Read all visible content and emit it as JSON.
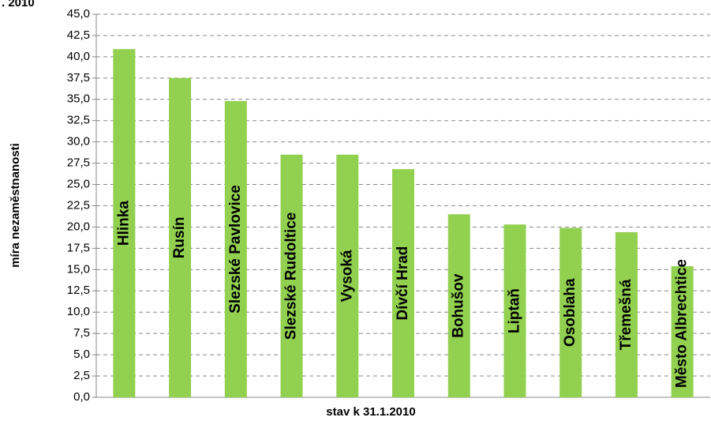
{
  "chart_data": {
    "type": "bar",
    "title": ". 2010",
    "x_label": "stav k 31.1.2010",
    "y_label": "míra nezaměstnanosti",
    "categories": [
      "Hlinka",
      "Rusín",
      "Slezské Pavlovice",
      "Slezské Rudoltice",
      "Vysoká",
      "Dívčí Hrad",
      "Bohušov",
      "Liptaň",
      "Osoblaha",
      "Třemešná",
      "Město Albrechtice"
    ],
    "values": [
      40.9,
      37.5,
      34.8,
      28.5,
      28.5,
      26.8,
      21.5,
      20.3,
      19.9,
      19.4,
      15.4
    ],
    "color": "#92d050",
    "ylim": [
      0,
      45
    ],
    "yticks": [
      {
        "value": 0,
        "label": "0,0"
      },
      {
        "value": 2.5,
        "label": "2,5"
      },
      {
        "value": 5,
        "label": "5,0"
      },
      {
        "value": 7.5,
        "label": "7,5"
      },
      {
        "value": 10,
        "label": "10,0"
      },
      {
        "value": 12.5,
        "label": "12,5"
      },
      {
        "value": 15,
        "label": "15,0"
      },
      {
        "value": 17.5,
        "label": "17,5"
      },
      {
        "value": 20,
        "label": "20,0"
      },
      {
        "value": 22.5,
        "label": "22,5"
      },
      {
        "value": 25,
        "label": "25,0"
      },
      {
        "value": 27.5,
        "label": "27,5"
      },
      {
        "value": 30,
        "label": "30,0"
      },
      {
        "value": 32.5,
        "label": "32,5"
      },
      {
        "value": 35,
        "label": "35,0"
      },
      {
        "value": 37.5,
        "label": "37,5"
      },
      {
        "value": 40,
        "label": "40,0"
      },
      {
        "value": 42.5,
        "label": "42,5"
      },
      {
        "value": 45,
        "label": "45,0"
      }
    ],
    "grid": true
  }
}
